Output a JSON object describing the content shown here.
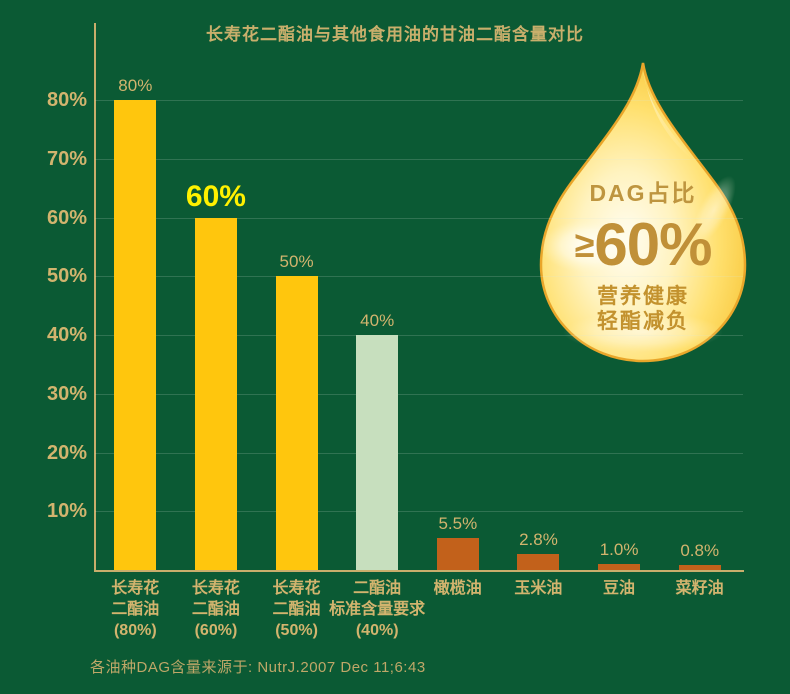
{
  "title": "长寿花二酯油与其他食用油的甘油二酯含量对比",
  "source_note": "各油种DAG含量来源于: NutrJ.2007 Dec 11;6:43",
  "droplet": {
    "heading": "DAG占比",
    "ge_symbol": "≥",
    "big_value": "60%",
    "tagline1": "营养健康",
    "tagline2": "轻酯减负"
  },
  "colors": {
    "background": "#0B5A34",
    "axis": "#C9AE6C",
    "tick_label": "#D2B46E",
    "title_text": "#C9AF6C",
    "bar_yellow": "#FFC60D",
    "bar_mint": "#C7DFBE",
    "bar_orange": "#C2611B",
    "highlight_label": "#FFF100",
    "droplet_text": "#BE9238"
  },
  "chart_data": {
    "type": "bar",
    "title": "长寿花二酯油与其他食用油的甘油二酯含量对比",
    "xlabel": "",
    "ylabel": "",
    "ylim": [
      0,
      85
    ],
    "grid": true,
    "legend": false,
    "yticks": [
      {
        "value": 10,
        "label": "10%"
      },
      {
        "value": 20,
        "label": "20%"
      },
      {
        "value": 30,
        "label": "30%"
      },
      {
        "value": 40,
        "label": "40%"
      },
      {
        "value": 50,
        "label": "50%"
      },
      {
        "value": 60,
        "label": "60%"
      },
      {
        "value": 70,
        "label": "70%"
      },
      {
        "value": 80,
        "label": "80%"
      }
    ],
    "categories": [
      "长寿花二酯油(80%)",
      "长寿花二酯油(60%)",
      "长寿花二酯油(50%)",
      "二酯油标准含量要求(40%)",
      "橄榄油",
      "玉米油",
      "豆油",
      "菜籽油"
    ],
    "values": [
      80,
      60,
      50,
      40,
      5.5,
      2.8,
      1.0,
      0.8
    ],
    "bars": [
      {
        "label_lines": [
          "长寿花",
          "二酯油",
          "(80%)"
        ],
        "value": 80,
        "value_label": "80%",
        "color": "yellow",
        "highlight": false
      },
      {
        "label_lines": [
          "长寿花",
          "二酯油",
          "(60%)"
        ],
        "value": 60,
        "value_label": "60%",
        "color": "yellow",
        "highlight": true
      },
      {
        "label_lines": [
          "长寿花",
          "二酯油",
          "(50%)"
        ],
        "value": 50,
        "value_label": "50%",
        "color": "yellow",
        "highlight": false
      },
      {
        "label_lines": [
          "二酯油",
          "标准含量要求",
          "(40%)"
        ],
        "value": 40,
        "value_label": "40%",
        "color": "mint",
        "highlight": false
      },
      {
        "label_lines": [
          "橄榄油"
        ],
        "value": 5.5,
        "value_label": "5.5%",
        "color": "orange",
        "highlight": false
      },
      {
        "label_lines": [
          "玉米油"
        ],
        "value": 2.8,
        "value_label": "2.8%",
        "color": "orange",
        "highlight": false
      },
      {
        "label_lines": [
          "豆油"
        ],
        "value": 1.0,
        "value_label": "1.0%",
        "color": "orange",
        "highlight": false
      },
      {
        "label_lines": [
          "菜籽油"
        ],
        "value": 0.8,
        "value_label": "0.8%",
        "color": "orange",
        "highlight": false
      }
    ]
  }
}
